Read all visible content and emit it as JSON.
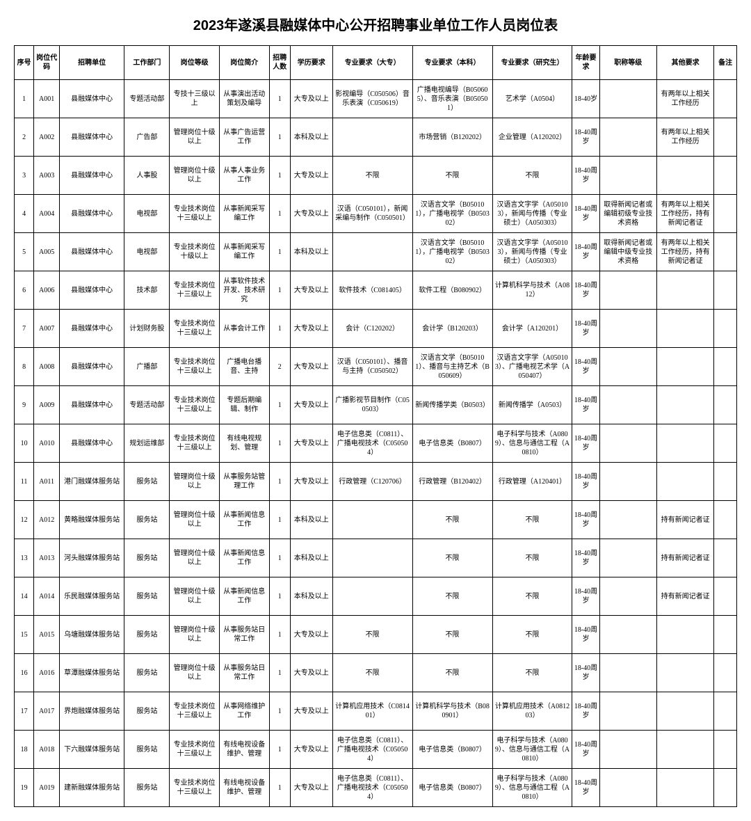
{
  "title": "2023年遂溪县融媒体中心公开招聘事业单位工作人员岗位表",
  "columns": [
    "序号",
    "岗位代码",
    "招聘单位",
    "工作部门",
    "岗位等级",
    "岗位简介",
    "招聘人数",
    "学历要求",
    "专业要求（大专）",
    "专业要求（本科）",
    "专业要求（研究生）",
    "年龄要求",
    "职称等级",
    "其他要求",
    "备注"
  ],
  "colClasses": [
    "col-seq",
    "col-code",
    "col-unit",
    "col-dept",
    "col-level",
    "col-desc",
    "col-count",
    "col-edu",
    "col-dz",
    "col-bk",
    "col-yj",
    "col-age",
    "col-zc",
    "col-other",
    "col-bz"
  ],
  "rows": [
    [
      "1",
      "A001",
      "县融媒体中心",
      "专题活动部",
      "专技十三级以上",
      "从事演出活动策划及编导",
      "1",
      "大专及以上",
      "影视编导（C050506）音乐表演（C050619）",
      "广播电视编导（B050605）、音乐表演（B050501）",
      "艺术学（A0504）",
      "18-40岁",
      "",
      "有两年以上相关工作经历",
      ""
    ],
    [
      "2",
      "A002",
      "县融媒体中心",
      "广告部",
      "管理岗位十级以上",
      "从事广告运营工作",
      "1",
      "本科及以上",
      "",
      "市场营销（B120202）",
      "企业管理（A120202）",
      "18-40周岁",
      "",
      "有两年以上相关工作经历",
      ""
    ],
    [
      "3",
      "A003",
      "县融媒体中心",
      "人事股",
      "管理岗位十级以上",
      "从事人事业务工作",
      "1",
      "大专及以上",
      "不限",
      "不限",
      "不限",
      "18-40周岁",
      "",
      "",
      ""
    ],
    [
      "4",
      "A004",
      "县融媒体中心",
      "电视部",
      "专业技术岗位十三级以上",
      "从事新闻采写编工作",
      "1",
      "大专及以上",
      "汉语（C050101），新闻采编与制作（C050501）",
      "汉语言文学（B050101），广播电视学（B050302）",
      "汉语言文字学（A050103），新闻与传播（专业硕士）（A050303）",
      "18-40周岁",
      "取得新闻记者或编辑初级专业技术资格",
      "有两年以上相关工作经历，持有新闻记者证",
      ""
    ],
    [
      "5",
      "A005",
      "县融媒体中心",
      "电视部",
      "专业技术岗位十级以上",
      "从事新闻采写编工作",
      "1",
      "本科及以上",
      "",
      "汉语言文学（B050101），广播电视学（B050302）",
      "汉语言文字学（A050103），新闻与传播（专业硕士）（A050303）",
      "18-40周岁",
      "取得新闻记者或编辑中级专业技术资格",
      "有两年以上相关工作经历，持有新闻记者证",
      ""
    ],
    [
      "6",
      "A006",
      "县融媒体中心",
      "技术部",
      "专业技术岗位十三级以上",
      "从事软件技术开发、技术研究",
      "1",
      "大专及以上",
      "软件技术（C081405）",
      "软件工程（B080902）",
      "计算机科学与技术（A0812）",
      "18-40周岁",
      "",
      "",
      ""
    ],
    [
      "7",
      "A007",
      "县融媒体中心",
      "计划财务股",
      "专业技术岗位十三级以上",
      "从事会计工作",
      "1",
      "大专及以上",
      "会计（C120202）",
      "会计学（B120203）",
      "会计学（A120201）",
      "18-40周岁",
      "",
      "",
      ""
    ],
    [
      "8",
      "A008",
      "县融媒体中心",
      "广播部",
      "专业技术岗位十三级以上",
      "广播电台播音、主持",
      "2",
      "大专及以上",
      "汉语（C050101）、播音与主持（C050502）",
      "汉语言文学（B050101）、播音与主持艺术（B050609）",
      "汉语言文字学（A050103）、广播电视艺术学（A050407）",
      "18-40周岁",
      "",
      "",
      ""
    ],
    [
      "9",
      "A009",
      "县融媒体中心",
      "专题活动部",
      "专业技术岗位十三级以上",
      "专题后期编辑、制作",
      "1",
      "大专及以上",
      "广播影视节目制作（C050503）",
      "新闻传播学类（B0503）",
      "新闻传播学（A0503）",
      "18-40周岁",
      "",
      "",
      ""
    ],
    [
      "10",
      "A010",
      "县融媒体中心",
      "规划运维部",
      "专业技术岗位十三级以上",
      "有线电视规划、管理",
      "1",
      "大专及以上",
      "电子信息类（C0811）、广播电视技术（C050504）",
      "电子信息类（B0807）",
      "电子科学与技术（A0809）、信息与通信工程（A0810）",
      "18-40周岁",
      "",
      "",
      ""
    ],
    [
      "11",
      "A011",
      "港门融媒体服务站",
      "服务站",
      "管理岗位十级以上",
      "从事服务站管理工作",
      "1",
      "大专及以上",
      "行政管理（C120706）",
      "行政管理（B120402）",
      "行政管理（A120401）",
      "18-40周岁",
      "",
      "",
      ""
    ],
    [
      "12",
      "A012",
      "黄略融媒体服务站",
      "服务站",
      "管理岗位十级以上",
      "从事新闻信息工作",
      "1",
      "本科及以上",
      "",
      "不限",
      "不限",
      "18-40周岁",
      "",
      "持有新闻记者证",
      ""
    ],
    [
      "13",
      "A013",
      "河头融媒体服务站",
      "服务站",
      "管理岗位十级以上",
      "从事新闻信息工作",
      "1",
      "本科及以上",
      "",
      "不限",
      "不限",
      "18-40周岁",
      "",
      "持有新闻记者证",
      ""
    ],
    [
      "14",
      "A014",
      "乐民融媒体服务站",
      "服务站",
      "管理岗位十级以上",
      "从事新闻信息工作",
      "1",
      "本科及以上",
      "",
      "不限",
      "不限",
      "18-40周岁",
      "",
      "持有新闻记者证",
      ""
    ],
    [
      "15",
      "A015",
      "乌塘融媒体服务站",
      "服务站",
      "管理岗位十级以上",
      "从事服务站日常工作",
      "1",
      "大专及以上",
      "不限",
      "不限",
      "不限",
      "18-40周岁",
      "",
      "",
      ""
    ],
    [
      "16",
      "A016",
      "草潭融媒体服务站",
      "服务站",
      "管理岗位十级以上",
      "从事服务站日常工作",
      "1",
      "大专及以上",
      "不限",
      "不限",
      "不限",
      "18-40周岁",
      "",
      "",
      ""
    ],
    [
      "17",
      "A017",
      "界炮融媒体服务站",
      "服务站",
      "专业技术岗位十三级以上",
      "从事网络维护工作",
      "1",
      "大专及以上",
      "计算机应用技术（C081401）",
      "计算机科学与技术（B080901）",
      "计算机应用技术（A081203）",
      "18-40周岁",
      "",
      "",
      ""
    ],
    [
      "18",
      "A018",
      "下六融媒体服务站",
      "服务站",
      "专业技术岗位十三级以上",
      "有线电视设备维护、管理",
      "1",
      "大专及以上",
      "电子信息类（C0811）、广播电视技术（C050504）",
      "电子信息类（B0807）",
      "电子科学与技术（A0809）、信息与通信工程（A0810）",
      "18-40周岁",
      "",
      "",
      ""
    ],
    [
      "19",
      "A019",
      "建新融媒体服务站",
      "服务站",
      "专业技术岗位十三级以上",
      "有线电视设备维护、管理",
      "1",
      "大专及以上",
      "电子信息类（C0811）、广播电视技术（C050504）",
      "电子信息类（B0807）",
      "电子科学与技术（A0809）、信息与通信工程（A0810）",
      "18-40周岁",
      "",
      "",
      ""
    ]
  ]
}
